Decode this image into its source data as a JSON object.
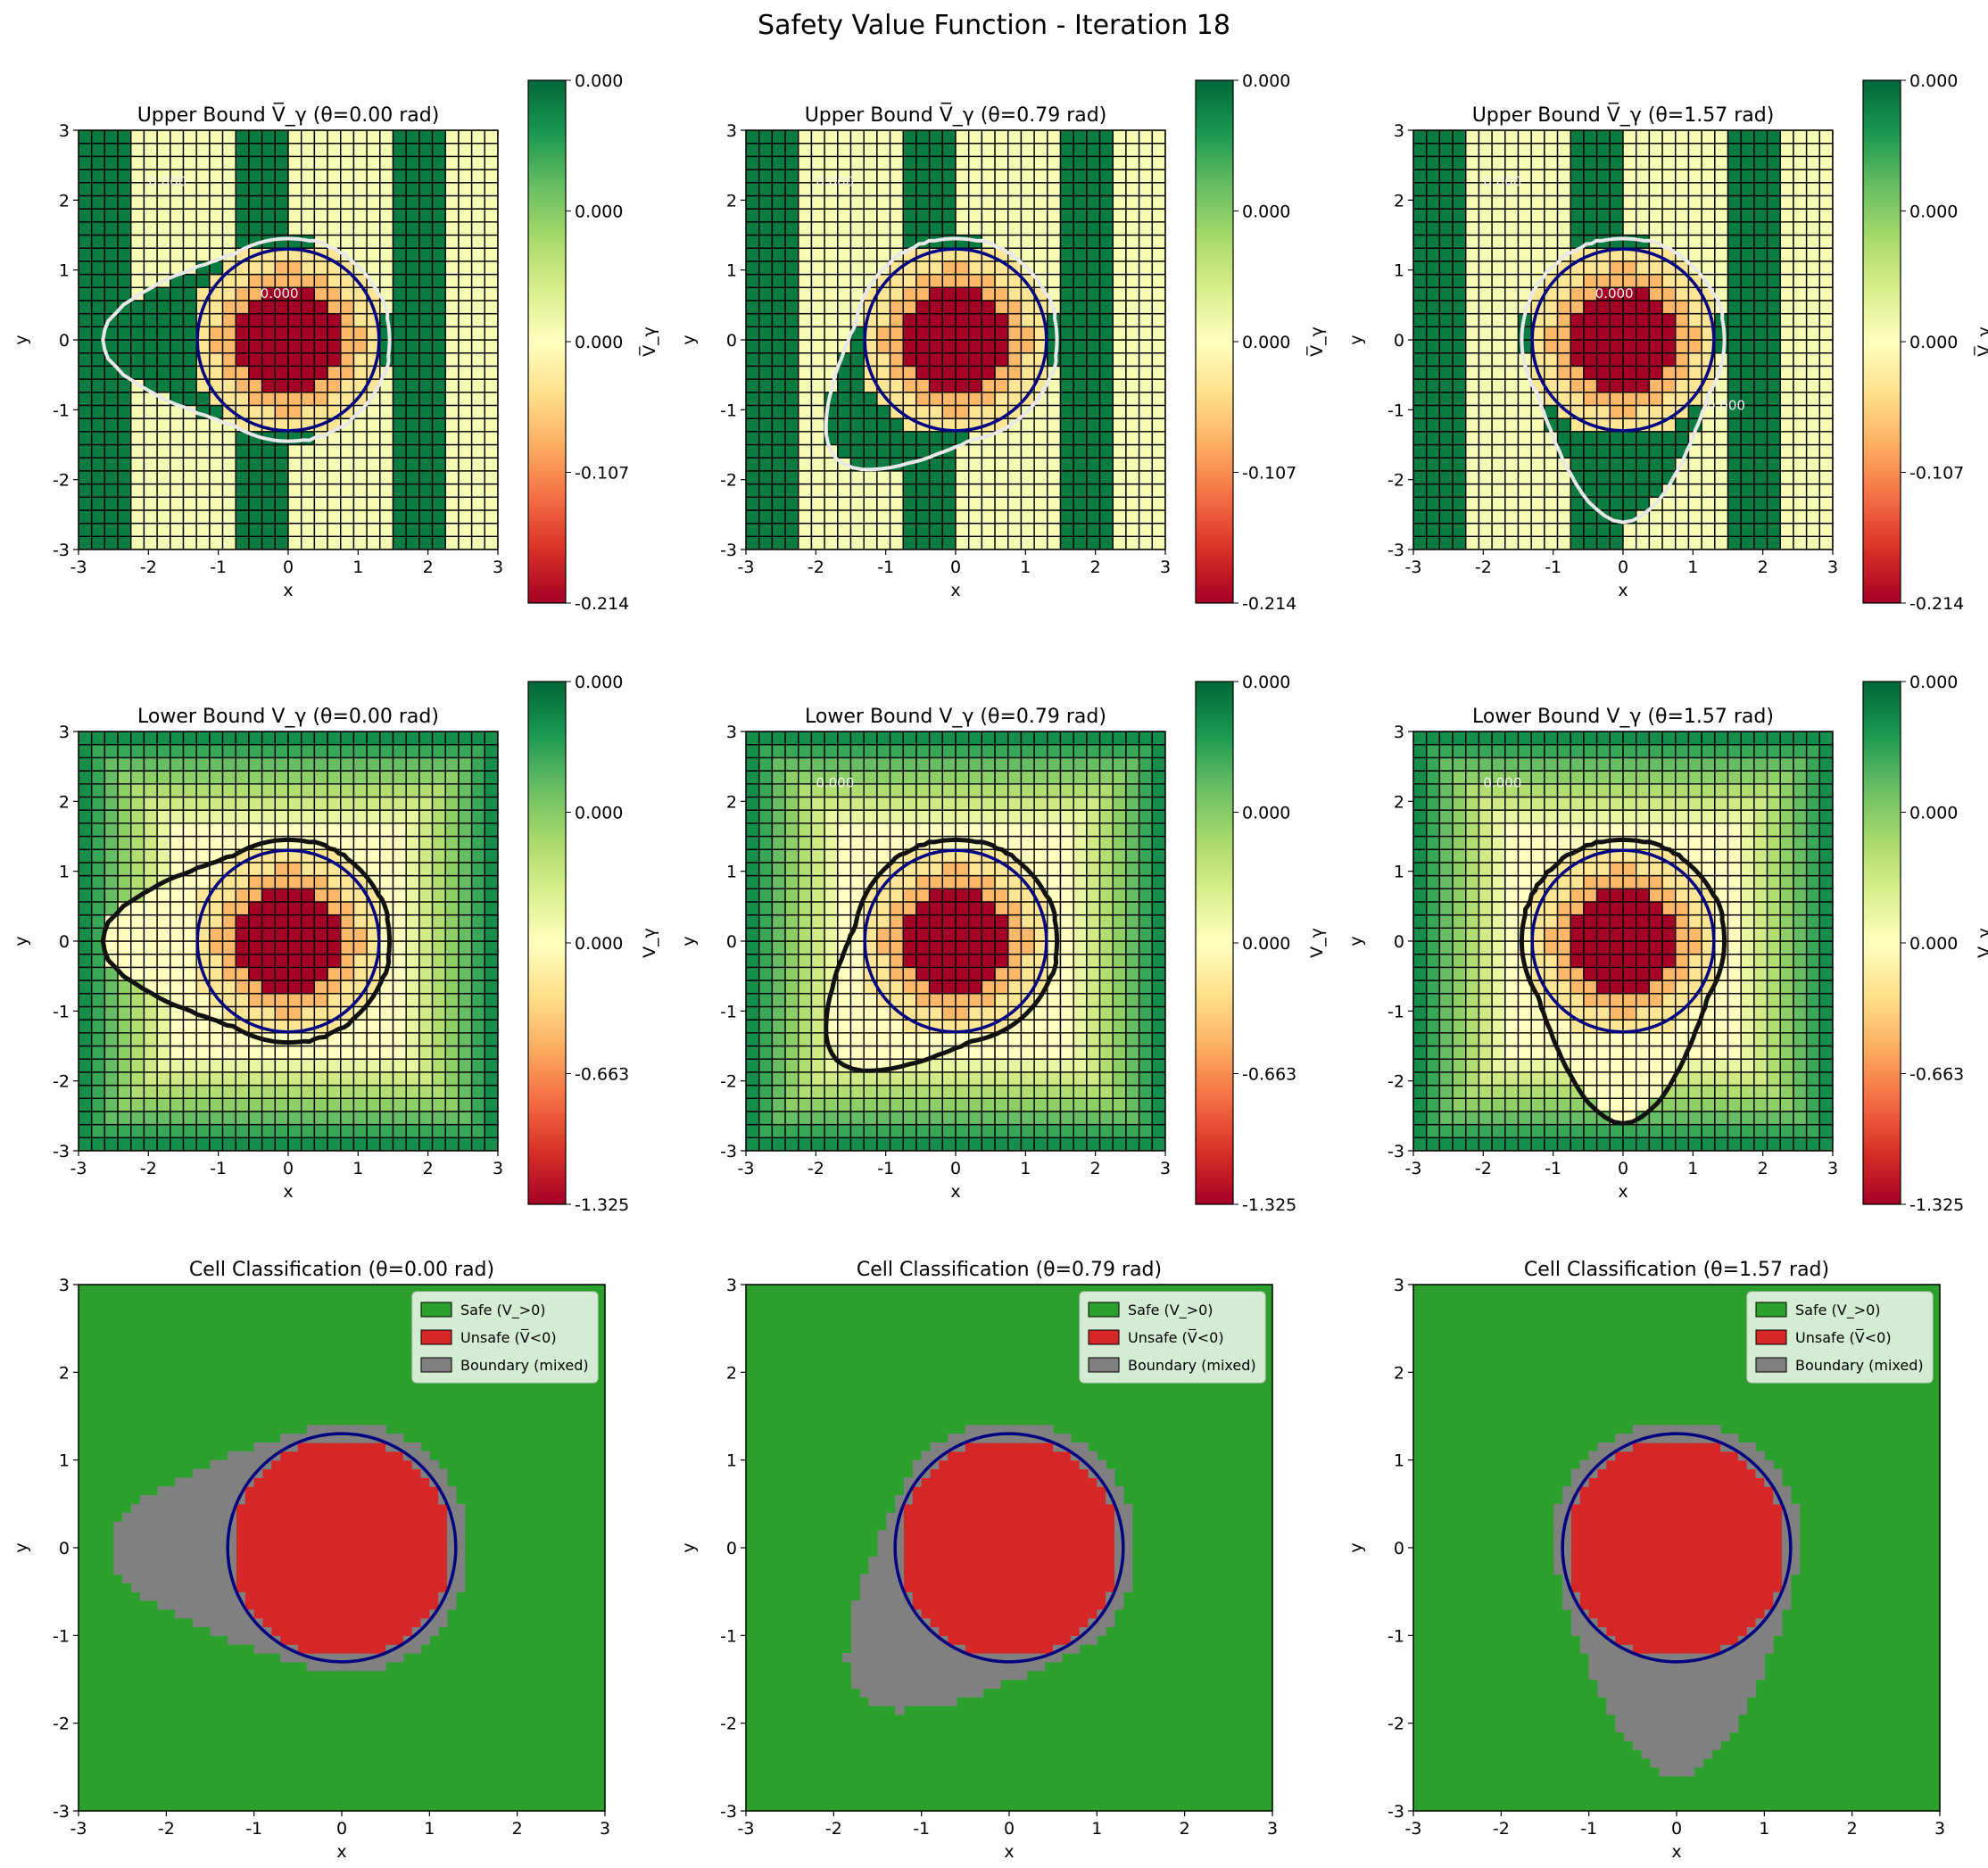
{
  "figure": {
    "suptitle": "Safety Value Function - Iteration 18"
  },
  "colors": {
    "safe": "#2ca02c",
    "unsafe": "#d62728",
    "boundary": "#808080",
    "circle": "#000080",
    "contour_light": "#e8e8e8",
    "contour_dark": "#111111"
  },
  "colormap": {
    "name": "RdYlGn",
    "stops": [
      "#a50026",
      "#d73027",
      "#f46d43",
      "#fdae61",
      "#fee08b",
      "#ffffbf",
      "#d9ef8b",
      "#a6d96a",
      "#66bd63",
      "#1a9850",
      "#006837"
    ]
  },
  "obstacle": {
    "center": [
      0,
      0
    ],
    "radius": 1.3
  },
  "chart_data": [
    {
      "id": "upper-0",
      "type": "heatmap",
      "bound": "upper",
      "theta": 0.0,
      "title": "Upper Bound V̅_γ (θ=0.00 rad)",
      "xlabel": "x",
      "ylabel": "y",
      "xlim": [
        -3,
        3
      ],
      "ylim": [
        -3,
        3
      ],
      "xticks": [
        "-3",
        "-2",
        "-1",
        "0",
        "1",
        "2",
        "3"
      ],
      "yticks": [
        "-3",
        "-2",
        "-1",
        "0",
        "1",
        "2",
        "3"
      ],
      "colorbar": {
        "label": "V̅_γ",
        "ticks": [
          "0.000",
          "0.000",
          "0.000",
          "-0.107",
          "-0.214"
        ]
      },
      "contour_labels": [
        "0.000",
        "0.000"
      ]
    },
    {
      "id": "upper-1",
      "type": "heatmap",
      "bound": "upper",
      "theta": 0.79,
      "title": "Upper Bound V̅_γ (θ=0.79 rad)",
      "xlabel": "x",
      "ylabel": "y",
      "xlim": [
        -3,
        3
      ],
      "ylim": [
        -3,
        3
      ],
      "xticks": [
        "-3",
        "-2",
        "-1",
        "0",
        "1",
        "2",
        "3"
      ],
      "yticks": [
        "-3",
        "-2",
        "-1",
        "0",
        "1",
        "2",
        "3"
      ],
      "colorbar": {
        "label": "V̅_γ",
        "ticks": [
          "0.000",
          "0.000",
          "0.000",
          "-0.107",
          "-0.214"
        ]
      },
      "contour_labels": [
        "0.000"
      ]
    },
    {
      "id": "upper-2",
      "type": "heatmap",
      "bound": "upper",
      "theta": 1.57,
      "title": "Upper Bound V̅_γ (θ=1.57 rad)",
      "xlabel": "x",
      "ylabel": "y",
      "xlim": [
        -3,
        3
      ],
      "ylim": [
        -3,
        3
      ],
      "xticks": [
        "-3",
        "-2",
        "-1",
        "0",
        "1",
        "2",
        "3"
      ],
      "yticks": [
        "-3",
        "-2",
        "-1",
        "0",
        "1",
        "2",
        "3"
      ],
      "colorbar": {
        "label": "V̅_γ",
        "ticks": [
          "0.000",
          "0.000",
          "0.000",
          "-0.107",
          "-0.214"
        ]
      },
      "contour_labels": [
        "0.000",
        "0.000",
        "0.000"
      ]
    },
    {
      "id": "lower-0",
      "type": "heatmap",
      "bound": "lower",
      "theta": 0.0,
      "title": "Lower Bound V_γ (θ=0.00 rad)",
      "xlabel": "x",
      "ylabel": "y",
      "xlim": [
        -3,
        3
      ],
      "ylim": [
        -3,
        3
      ],
      "xticks": [
        "-3",
        "-2",
        "-1",
        "0",
        "1",
        "2",
        "3"
      ],
      "yticks": [
        "-3",
        "-2",
        "-1",
        "0",
        "1",
        "2",
        "3"
      ],
      "colorbar": {
        "label": "V_γ",
        "ticks": [
          "0.000",
          "0.000",
          "0.000",
          "-0.663",
          "-1.325"
        ]
      },
      "contour_labels": []
    },
    {
      "id": "lower-1",
      "type": "heatmap",
      "bound": "lower",
      "theta": 0.79,
      "title": "Lower Bound V_γ (θ=0.79 rad)",
      "xlabel": "x",
      "ylabel": "y",
      "xlim": [
        -3,
        3
      ],
      "ylim": [
        -3,
        3
      ],
      "xticks": [
        "-3",
        "-2",
        "-1",
        "0",
        "1",
        "2",
        "3"
      ],
      "yticks": [
        "-3",
        "-2",
        "-1",
        "0",
        "1",
        "2",
        "3"
      ],
      "colorbar": {
        "label": "V_γ",
        "ticks": [
          "0.000",
          "0.000",
          "0.000",
          "-0.663",
          "-1.325"
        ]
      },
      "contour_labels": [
        "0.000"
      ]
    },
    {
      "id": "lower-2",
      "type": "heatmap",
      "bound": "lower",
      "theta": 1.57,
      "title": "Lower Bound V_γ (θ=1.57 rad)",
      "xlabel": "x",
      "ylabel": "y",
      "xlim": [
        -3,
        3
      ],
      "ylim": [
        -3,
        3
      ],
      "xticks": [
        "-3",
        "-2",
        "-1",
        "0",
        "1",
        "2",
        "3"
      ],
      "yticks": [
        "-3",
        "-2",
        "-1",
        "0",
        "1",
        "2",
        "3"
      ],
      "colorbar": {
        "label": "V_γ",
        "ticks": [
          "0.000",
          "0.000",
          "0.000",
          "-0.663",
          "-1.325"
        ]
      },
      "contour_labels": [
        "0.000"
      ]
    },
    {
      "id": "class-0",
      "type": "heatmap",
      "bound": "class",
      "theta": 0.0,
      "title": "Cell Classification (θ=0.00 rad)",
      "xlabel": "x",
      "ylabel": "y",
      "xlim": [
        -3,
        3
      ],
      "ylim": [
        -3,
        3
      ],
      "xticks": [
        "-3",
        "-2",
        "-1",
        "0",
        "1",
        "2",
        "3"
      ],
      "yticks": [
        "-3",
        "-2",
        "-1",
        "0",
        "1",
        "2",
        "3"
      ],
      "legend": {
        "position": "upper-right",
        "entries": [
          "Safe (V_>0)",
          "Unsafe (V̅<0)",
          "Boundary (mixed)"
        ]
      }
    },
    {
      "id": "class-1",
      "type": "heatmap",
      "bound": "class",
      "theta": 0.79,
      "title": "Cell Classification (θ=0.79 rad)",
      "xlabel": "x",
      "ylabel": "y",
      "xlim": [
        -3,
        3
      ],
      "ylim": [
        -3,
        3
      ],
      "xticks": [
        "-3",
        "-2",
        "-1",
        "0",
        "1",
        "2",
        "3"
      ],
      "yticks": [
        "-3",
        "-2",
        "-1",
        "0",
        "1",
        "2",
        "3"
      ],
      "legend": {
        "position": "upper-right",
        "entries": [
          "Safe (V_>0)",
          "Unsafe (V̅<0)",
          "Boundary (mixed)"
        ]
      }
    },
    {
      "id": "class-2",
      "type": "heatmap",
      "bound": "class",
      "theta": 1.57,
      "title": "Cell Classification (θ=1.57 rad)",
      "xlabel": "x",
      "ylabel": "y",
      "xlim": [
        -3,
        3
      ],
      "ylim": [
        -3,
        3
      ],
      "xticks": [
        "-3",
        "-2",
        "-1",
        "0",
        "1",
        "2",
        "3"
      ],
      "yticks": [
        "-3",
        "-2",
        "-1",
        "0",
        "1",
        "2",
        "3"
      ],
      "legend": {
        "position": "upper-right",
        "entries": [
          "Safe (V_>0)",
          "Unsafe (V̅<0)",
          "Boundary (mixed)"
        ]
      }
    }
  ]
}
